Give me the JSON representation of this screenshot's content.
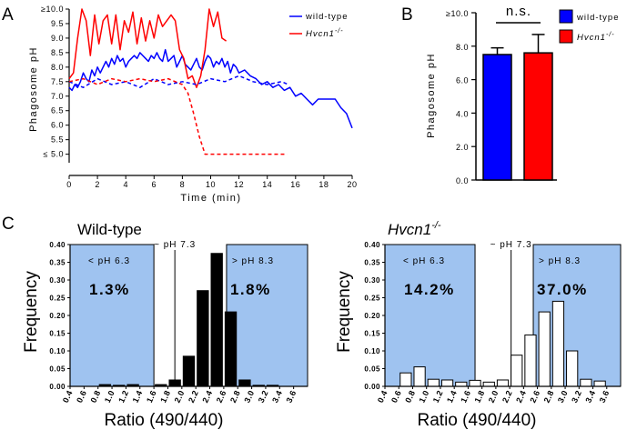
{
  "panels": {
    "A": "A",
    "B": "B",
    "C": "C"
  },
  "chart_data": [
    {
      "panel": "A",
      "type": "line",
      "xlabel": "Time (min)",
      "ylabel": "Phagosome pH",
      "xlim": [
        0,
        20
      ],
      "ylim": [
        4.8,
        10.0
      ],
      "x_ticks": [
        "0",
        "2",
        "4",
        "6",
        "8",
        "10",
        "12",
        "14",
        "16",
        "18",
        "20"
      ],
      "y_ticks": [
        "≤ 5.0",
        "5.5",
        "6.0",
        "6.5",
        "7.0",
        "7.5",
        "8.0",
        "8.5",
        "9.0",
        "9.5",
        "≥10.0"
      ],
      "legend": {
        "position": "top-right",
        "entries": [
          "wild-type",
          "Hvcn1"
        ],
        "superscript": "-/-"
      },
      "series": [
        {
          "name": "wild-type",
          "style": "solid",
          "color": "#0000ff",
          "x": [
            0,
            0.2,
            0.4,
            0.6,
            0.8,
            1,
            1.2,
            1.4,
            1.6,
            1.8,
            2,
            2.2,
            2.4,
            2.6,
            2.8,
            3,
            3.2,
            3.4,
            3.6,
            3.8,
            4,
            4.2,
            4.4,
            4.6,
            4.8,
            5,
            5.2,
            5.4,
            5.6,
            5.8,
            6,
            6.2,
            6.4,
            6.6,
            6.8,
            7,
            7.2,
            7.4,
            7.6,
            7.8,
            8,
            8.2,
            8.4,
            8.6,
            8.8,
            9,
            9.2,
            9.4,
            9.6,
            9.8,
            10,
            10.2,
            10.4,
            10.6,
            10.8,
            11,
            11.2,
            11.4,
            11.6,
            11.8,
            12,
            12.4,
            12.8,
            13.2,
            13.6,
            14,
            14.4,
            14.8,
            15.2,
            15.6,
            16,
            16.4,
            16.8,
            17.2,
            17.6,
            18,
            18.4,
            18.8,
            19.2,
            19.6,
            20
          ],
          "y": [
            7.3,
            7.2,
            7.4,
            7.3,
            7.5,
            7.8,
            7.6,
            7.5,
            7.9,
            7.7,
            8.0,
            7.8,
            8.0,
            8.2,
            8.0,
            8.3,
            8.1,
            8.4,
            8.2,
            8.3,
            8.0,
            8.2,
            8.3,
            8.4,
            8.3,
            8.5,
            8.4,
            8.3,
            8.2,
            8.4,
            8.3,
            8.5,
            8.3,
            8.2,
            8.6,
            8.2,
            8.3,
            8.4,
            8.0,
            8.2,
            8.4,
            8.1,
            8.0,
            7.9,
            8.1,
            8.3,
            8.0,
            7.9,
            8.2,
            8.4,
            8.3,
            8.0,
            8.2,
            8.1,
            8.3,
            8.0,
            8.2,
            7.8,
            8.1,
            8.0,
            7.8,
            7.9,
            7.7,
            7.6,
            7.4,
            7.5,
            7.3,
            7.4,
            7.2,
            7.3,
            7.0,
            7.1,
            6.9,
            6.7,
            6.9,
            6.9,
            6.9,
            6.9,
            6.6,
            6.4,
            5.9
          ]
        },
        {
          "name": "Hvcn1",
          "style": "solid",
          "color": "#ff0000",
          "x": [
            0,
            0.3,
            0.6,
            0.9,
            1.2,
            1.5,
            1.8,
            2.1,
            2.4,
            2.7,
            3.0,
            3.3,
            3.6,
            3.9,
            4.2,
            4.5,
            4.8,
            5.1,
            5.4,
            5.7,
            6.0,
            6.3,
            6.6,
            6.9,
            7.2,
            7.5,
            7.8,
            8.1,
            8.4,
            8.7,
            9.0,
            9.3,
            9.6,
            9.9,
            10.2,
            10.5,
            10.8,
            11.1
          ],
          "y": [
            7.6,
            7.8,
            9.0,
            10.0,
            9.6,
            8.4,
            9.8,
            8.8,
            9.6,
            9.8,
            8.8,
            9.8,
            8.6,
            9.6,
            9.2,
            9.9,
            8.8,
            9.7,
            8.9,
            9.6,
            9.0,
            9.8,
            9.4,
            9.6,
            9.8,
            9.6,
            8.6,
            8.3,
            7.6,
            7.7,
            7.3,
            7.7,
            8.6,
            10.0,
            9.4,
            9.9,
            9.0,
            8.9
          ]
        },
        {
          "name": "wild-type (dashed)",
          "style": "dashed",
          "color": "#0000ff",
          "x": [
            0,
            1,
            2,
            3,
            4,
            5,
            6,
            7,
            8,
            9,
            10,
            11,
            12,
            13,
            14,
            15,
            15.5
          ],
          "y": [
            7.5,
            7.3,
            7.6,
            7.4,
            7.5,
            7.3,
            7.6,
            7.4,
            7.5,
            7.4,
            7.6,
            7.5,
            7.7,
            7.5,
            7.4,
            7.5,
            7.4
          ]
        },
        {
          "name": "Hvcn1 (dashed)",
          "style": "dashed",
          "color": "#ff0000",
          "x": [
            0,
            1,
            2,
            3,
            4,
            5,
            6,
            7,
            8,
            8.4,
            8.8,
            9.2,
            9.6,
            10,
            11,
            12,
            13,
            14,
            15,
            15.4
          ],
          "y": [
            7.5,
            7.6,
            7.4,
            7.6,
            7.5,
            7.6,
            7.5,
            7.6,
            7.4,
            7.1,
            6.4,
            5.6,
            5.0,
            5.0,
            5.0,
            5.0,
            5.0,
            5.0,
            5.0,
            5.0
          ]
        }
      ]
    },
    {
      "panel": "B",
      "type": "bar",
      "ylabel": "Phagosome pH",
      "ylim": [
        0,
        10
      ],
      "y_ticks": [
        "0.0",
        "2.0",
        "4.0",
        "6.0",
        "8.0",
        "≥10.0"
      ],
      "categories": [
        "wild-type",
        "Hvcn1"
      ],
      "values": [
        7.5,
        7.6
      ],
      "errors": [
        0.4,
        1.1
      ],
      "colors": [
        "#0000ff",
        "#ff0000"
      ],
      "annotation": "n.s.",
      "legend": {
        "position": "top-right",
        "entries": [
          "wild-type",
          "Hvcn1"
        ],
        "superscript": "-/-"
      }
    },
    {
      "panel": "C-left",
      "type": "bar",
      "title": "Wild-type",
      "xlabel": "Ratio (490/440)",
      "ylabel": "Frequency",
      "ylim": [
        0,
        0.4
      ],
      "y_ticks": [
        "0.00",
        "0.05",
        "0.10",
        "0.15",
        "0.20",
        "0.25",
        "0.30",
        "0.35",
        "0.40"
      ],
      "categories": [
        "0.4",
        "0.6",
        "0.8",
        "1.0",
        "1.2",
        "1.4",
        "1.6",
        "1.8",
        "2.0",
        "2.2",
        "2.4",
        "2.6",
        "2.8",
        "3.0",
        "3.2",
        "3.4",
        "3.6"
      ],
      "bin_values": [
        0.0,
        0.0,
        0.005,
        0.003,
        0.005,
        0.0,
        0.005,
        0.018,
        0.085,
        0.27,
        0.375,
        0.21,
        0.018,
        0.003,
        0.003,
        0.0,
        0.0
      ],
      "bar_fill": "#000000",
      "regions": [
        {
          "label": "< pH 6.3",
          "percent": "1.3%"
        },
        {
          "label": "> pH 8.3",
          "percent": "1.8%"
        }
      ],
      "center_label": "~ pH 7.3"
    },
    {
      "panel": "C-right",
      "type": "bar",
      "title": "Hvcn1",
      "title_superscript": "-/-",
      "xlabel": "Ratio (490/440)",
      "ylabel": "Frequency",
      "ylim": [
        0,
        0.4
      ],
      "y_ticks": [
        "0.00",
        "0.05",
        "0.10",
        "0.15",
        "0.20",
        "0.25",
        "0.30",
        "0.35",
        "0.40"
      ],
      "categories": [
        "0.4",
        "0.6",
        "0.8",
        "1.0",
        "1.2",
        "1.4",
        "1.6",
        "1.8",
        "2.0",
        "2.2",
        "2.4",
        "2.6",
        "2.8",
        "3.0",
        "3.2",
        "3.4",
        "3.6"
      ],
      "bin_values": [
        0.0,
        0.038,
        0.055,
        0.02,
        0.018,
        0.012,
        0.017,
        0.012,
        0.018,
        0.088,
        0.145,
        0.21,
        0.24,
        0.1,
        0.02,
        0.015,
        0.0
      ],
      "bar_fill": "#ffffff",
      "regions": [
        {
          "label": "< pH 6.3",
          "percent": "14.2%"
        },
        {
          "label": "> pH 8.3",
          "percent": "37.0%"
        }
      ],
      "center_label": "~ pH 7.3"
    }
  ]
}
